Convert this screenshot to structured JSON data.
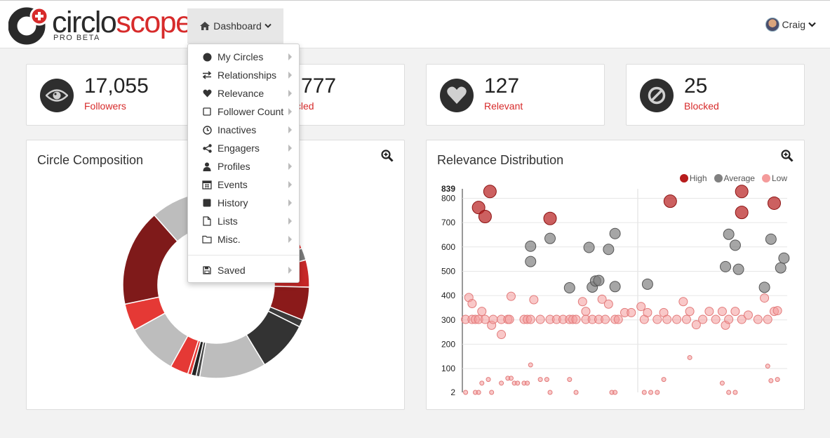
{
  "header": {
    "logo_part1": "circlo",
    "logo_part2": "scope",
    "logo_sub": "PRO BETA",
    "dashboard_label": "Dashboard",
    "user_name": "Craig"
  },
  "stats": [
    {
      "value": "17,055",
      "label": "Followers",
      "icon": "eye-icon"
    },
    {
      "value": "1,777",
      "label": "Circled",
      "icon": "circles-icon"
    },
    {
      "value": "127",
      "label": "Relevant",
      "icon": "heart-icon"
    },
    {
      "value": "25",
      "label": "Blocked",
      "icon": "ban-icon"
    }
  ],
  "menu": {
    "items": [
      {
        "label": "My Circles",
        "icon": "circle-icon"
      },
      {
        "label": "Relationships",
        "icon": "exchange-icon"
      },
      {
        "label": "Relevance",
        "icon": "heart-icon"
      },
      {
        "label": "Follower Count",
        "icon": "square-outline-icon"
      },
      {
        "label": "Inactives",
        "icon": "clock-icon"
      },
      {
        "label": "Engagers",
        "icon": "share-icon"
      },
      {
        "label": "Profiles",
        "icon": "user-icon"
      },
      {
        "label": "Events",
        "icon": "calendar-icon"
      },
      {
        "label": "History",
        "icon": "square-filled-icon"
      },
      {
        "label": "Lists",
        "icon": "file-icon"
      },
      {
        "label": "Misc.",
        "icon": "folder-icon"
      }
    ],
    "saved_label": "Saved",
    "saved_icon": "save-icon"
  },
  "composition": {
    "title": "Circle Composition"
  },
  "colors": {
    "accent": "#d72b2b",
    "high": "#b71c1c",
    "average": "#808080",
    "low": "#f49b9b"
  },
  "chart_data": [
    {
      "type": "pie",
      "title": "Circle Composition",
      "donut": true,
      "slices": [
        {
          "value": 2.0,
          "color": "#7a1416"
        },
        {
          "value": 1.0,
          "color": "#c62828"
        },
        {
          "value": 0.5,
          "color": "#5a0a0a"
        },
        {
          "value": 0.5,
          "color": "#e53935"
        },
        {
          "value": 0.3,
          "color": "#3b0707"
        },
        {
          "value": 0.3,
          "color": "#b71c1c"
        },
        {
          "value": 0.3,
          "color": "#ee4444"
        },
        {
          "value": 0.3,
          "color": "#8b0f0f"
        },
        {
          "value": 4.0,
          "color": "#4a0b0b"
        },
        {
          "value": 5.0,
          "color": "#ef3535"
        },
        {
          "value": 3.5,
          "color": "#e32b2b"
        },
        {
          "value": 2.0,
          "color": "#7a7a7a"
        },
        {
          "value": 4.5,
          "color": "#c62828"
        },
        {
          "value": 5.5,
          "color": "#8b1a1a"
        },
        {
          "value": 1.2,
          "color": "#3b3b3b"
        },
        {
          "value": 8.5,
          "color": "#333333"
        },
        {
          "value": 11.0,
          "color": "#bdbdbd"
        },
        {
          "value": 0.6,
          "color": "#4a4a4a"
        },
        {
          "value": 0.8,
          "color": "#222222"
        },
        {
          "value": 0.6,
          "color": "#e53935"
        },
        {
          "value": 3.0,
          "color": "#e53935"
        },
        {
          "value": 8.5,
          "color": "#bdbdbd"
        },
        {
          "value": 4.5,
          "color": "#e53935"
        },
        {
          "value": 16.0,
          "color": "#7f1a1a"
        },
        {
          "value": 11.0,
          "color": "#bdbdbd"
        }
      ]
    },
    {
      "type": "scatter",
      "title": "Relevance Distribution",
      "legend": [
        "High",
        "Average",
        "Low"
      ],
      "legend_placement": "top-right",
      "y_ticks": [
        2,
        100,
        200,
        300,
        400,
        500,
        600,
        700,
        800,
        839
      ],
      "ylim": [
        2,
        839
      ],
      "xlim": [
        0,
        100
      ],
      "series": [
        {
          "name": "High",
          "color": "#b71c1c",
          "points": [
            [
              5,
              762,
              9
            ],
            [
              7,
              725,
              9
            ],
            [
              8.5,
              828,
              9
            ],
            [
              27,
              717,
              9
            ],
            [
              64,
              788,
              9
            ],
            [
              86,
              828,
              9
            ],
            [
              86,
              742,
              9
            ],
            [
              96,
              780,
              9
            ]
          ]
        },
        {
          "name": "Average",
          "color": "#808080",
          "points": [
            [
              21,
              603,
              7.5
            ],
            [
              21,
              540,
              7.5
            ],
            [
              27,
              635,
              7.5
            ],
            [
              33,
              432,
              7.5
            ],
            [
              39,
              598,
              7.5
            ],
            [
              40,
              435,
              7.5
            ],
            [
              41,
              460,
              7.5
            ],
            [
              42,
              462,
              7.5
            ],
            [
              45,
              590,
              7.5
            ],
            [
              47,
              437,
              7.5
            ],
            [
              47,
              655,
              7.5
            ],
            [
              57,
              447,
              7.5
            ],
            [
              81,
              519,
              7.5
            ],
            [
              82,
              652,
              7.5
            ],
            [
              84,
              607,
              7.5
            ],
            [
              85,
              508,
              7.5
            ],
            [
              93,
              434,
              7.5
            ],
            [
              95,
              632,
              7.5
            ],
            [
              98,
              514,
              7.5
            ],
            [
              99,
              554,
              7.5
            ]
          ]
        },
        {
          "name": "Low",
          "color": "#f49b9b",
          "points": [
            [
              1,
              302,
              6
            ],
            [
              2,
              392,
              6
            ],
            [
              3,
              367,
              6
            ],
            [
              3,
              302,
              6
            ],
            [
              4,
              302,
              6
            ],
            [
              5,
              302,
              6
            ],
            [
              6,
              335,
              6
            ],
            [
              7,
              302,
              6
            ],
            [
              9,
              278,
              6
            ],
            [
              9.5,
              302,
              6
            ],
            [
              12,
              302,
              6
            ],
            [
              12,
              240,
              6
            ],
            [
              14,
              302,
              6
            ],
            [
              15,
              397,
              6
            ],
            [
              14.5,
              302,
              6
            ],
            [
              19,
              302,
              6
            ],
            [
              20,
              302,
              6
            ],
            [
              21,
              302,
              6
            ],
            [
              22,
              383,
              6
            ],
            [
              24,
              302,
              6
            ],
            [
              27,
              302,
              6
            ],
            [
              29,
              302,
              6
            ],
            [
              31,
              302,
              6
            ],
            [
              33,
              302,
              6
            ],
            [
              34,
              302,
              6
            ],
            [
              35,
              302,
              6
            ],
            [
              37,
              375,
              6
            ],
            [
              38,
              335,
              6
            ],
            [
              38,
              302,
              6
            ],
            [
              40,
              302,
              6
            ],
            [
              42,
              302,
              6
            ],
            [
              43,
              385,
              6
            ],
            [
              44,
              302,
              6
            ],
            [
              45,
              365,
              6
            ],
            [
              47,
              302,
              6
            ],
            [
              48,
              302,
              6
            ],
            [
              50,
              330,
              6
            ],
            [
              52,
              330,
              6
            ],
            [
              55,
              355,
              6
            ],
            [
              56,
              302,
              6
            ],
            [
              57,
              330,
              6
            ],
            [
              60,
              302,
              6
            ],
            [
              62,
              330,
              6
            ],
            [
              63,
              302,
              6
            ],
            [
              66,
              302,
              6
            ],
            [
              68,
              375,
              6
            ],
            [
              69,
              302,
              6
            ],
            [
              70,
              335,
              6
            ],
            [
              72,
              280,
              6
            ],
            [
              74,
              302,
              6
            ],
            [
              76,
              335,
              6
            ],
            [
              78,
              302,
              6
            ],
            [
              80,
              335,
              6
            ],
            [
              81,
              278,
              6
            ],
            [
              82,
              302,
              6
            ],
            [
              84,
              335,
              6
            ],
            [
              86,
              302,
              6
            ],
            [
              88,
              320,
              6
            ],
            [
              91,
              302,
              6
            ],
            [
              93,
              390,
              6
            ],
            [
              94,
              302,
              6
            ],
            [
              96,
              335,
              6
            ],
            [
              97,
              338,
              6
            ],
            [
              1,
              2,
              3
            ],
            [
              4,
              2,
              3
            ],
            [
              5,
              2,
              3
            ],
            [
              6,
              40,
              3
            ],
            [
              8,
              55,
              3
            ],
            [
              9,
              2,
              3
            ],
            [
              12,
              40,
              3
            ],
            [
              14,
              60,
              3
            ],
            [
              15,
              60,
              3
            ],
            [
              16,
              40,
              3
            ],
            [
              17,
              40,
              3
            ],
            [
              19,
              40,
              3
            ],
            [
              20,
              40,
              3
            ],
            [
              21,
              115,
              3
            ],
            [
              24,
              55,
              3
            ],
            [
              26,
              55,
              3
            ],
            [
              27,
              2,
              3
            ],
            [
              33,
              55,
              3
            ],
            [
              35,
              2,
              3
            ],
            [
              46,
              2,
              3
            ],
            [
              47,
              2,
              3
            ],
            [
              56,
              2,
              3
            ],
            [
              58,
              2,
              3
            ],
            [
              60,
              2,
              3
            ],
            [
              62,
              55,
              3
            ],
            [
              70,
              145,
              3
            ],
            [
              80,
              40,
              3
            ],
            [
              82,
              2,
              3
            ],
            [
              84,
              2,
              3
            ],
            [
              94,
              110,
              3
            ],
            [
              95,
              50,
              3
            ],
            [
              97,
              55,
              3
            ]
          ]
        }
      ]
    }
  ]
}
